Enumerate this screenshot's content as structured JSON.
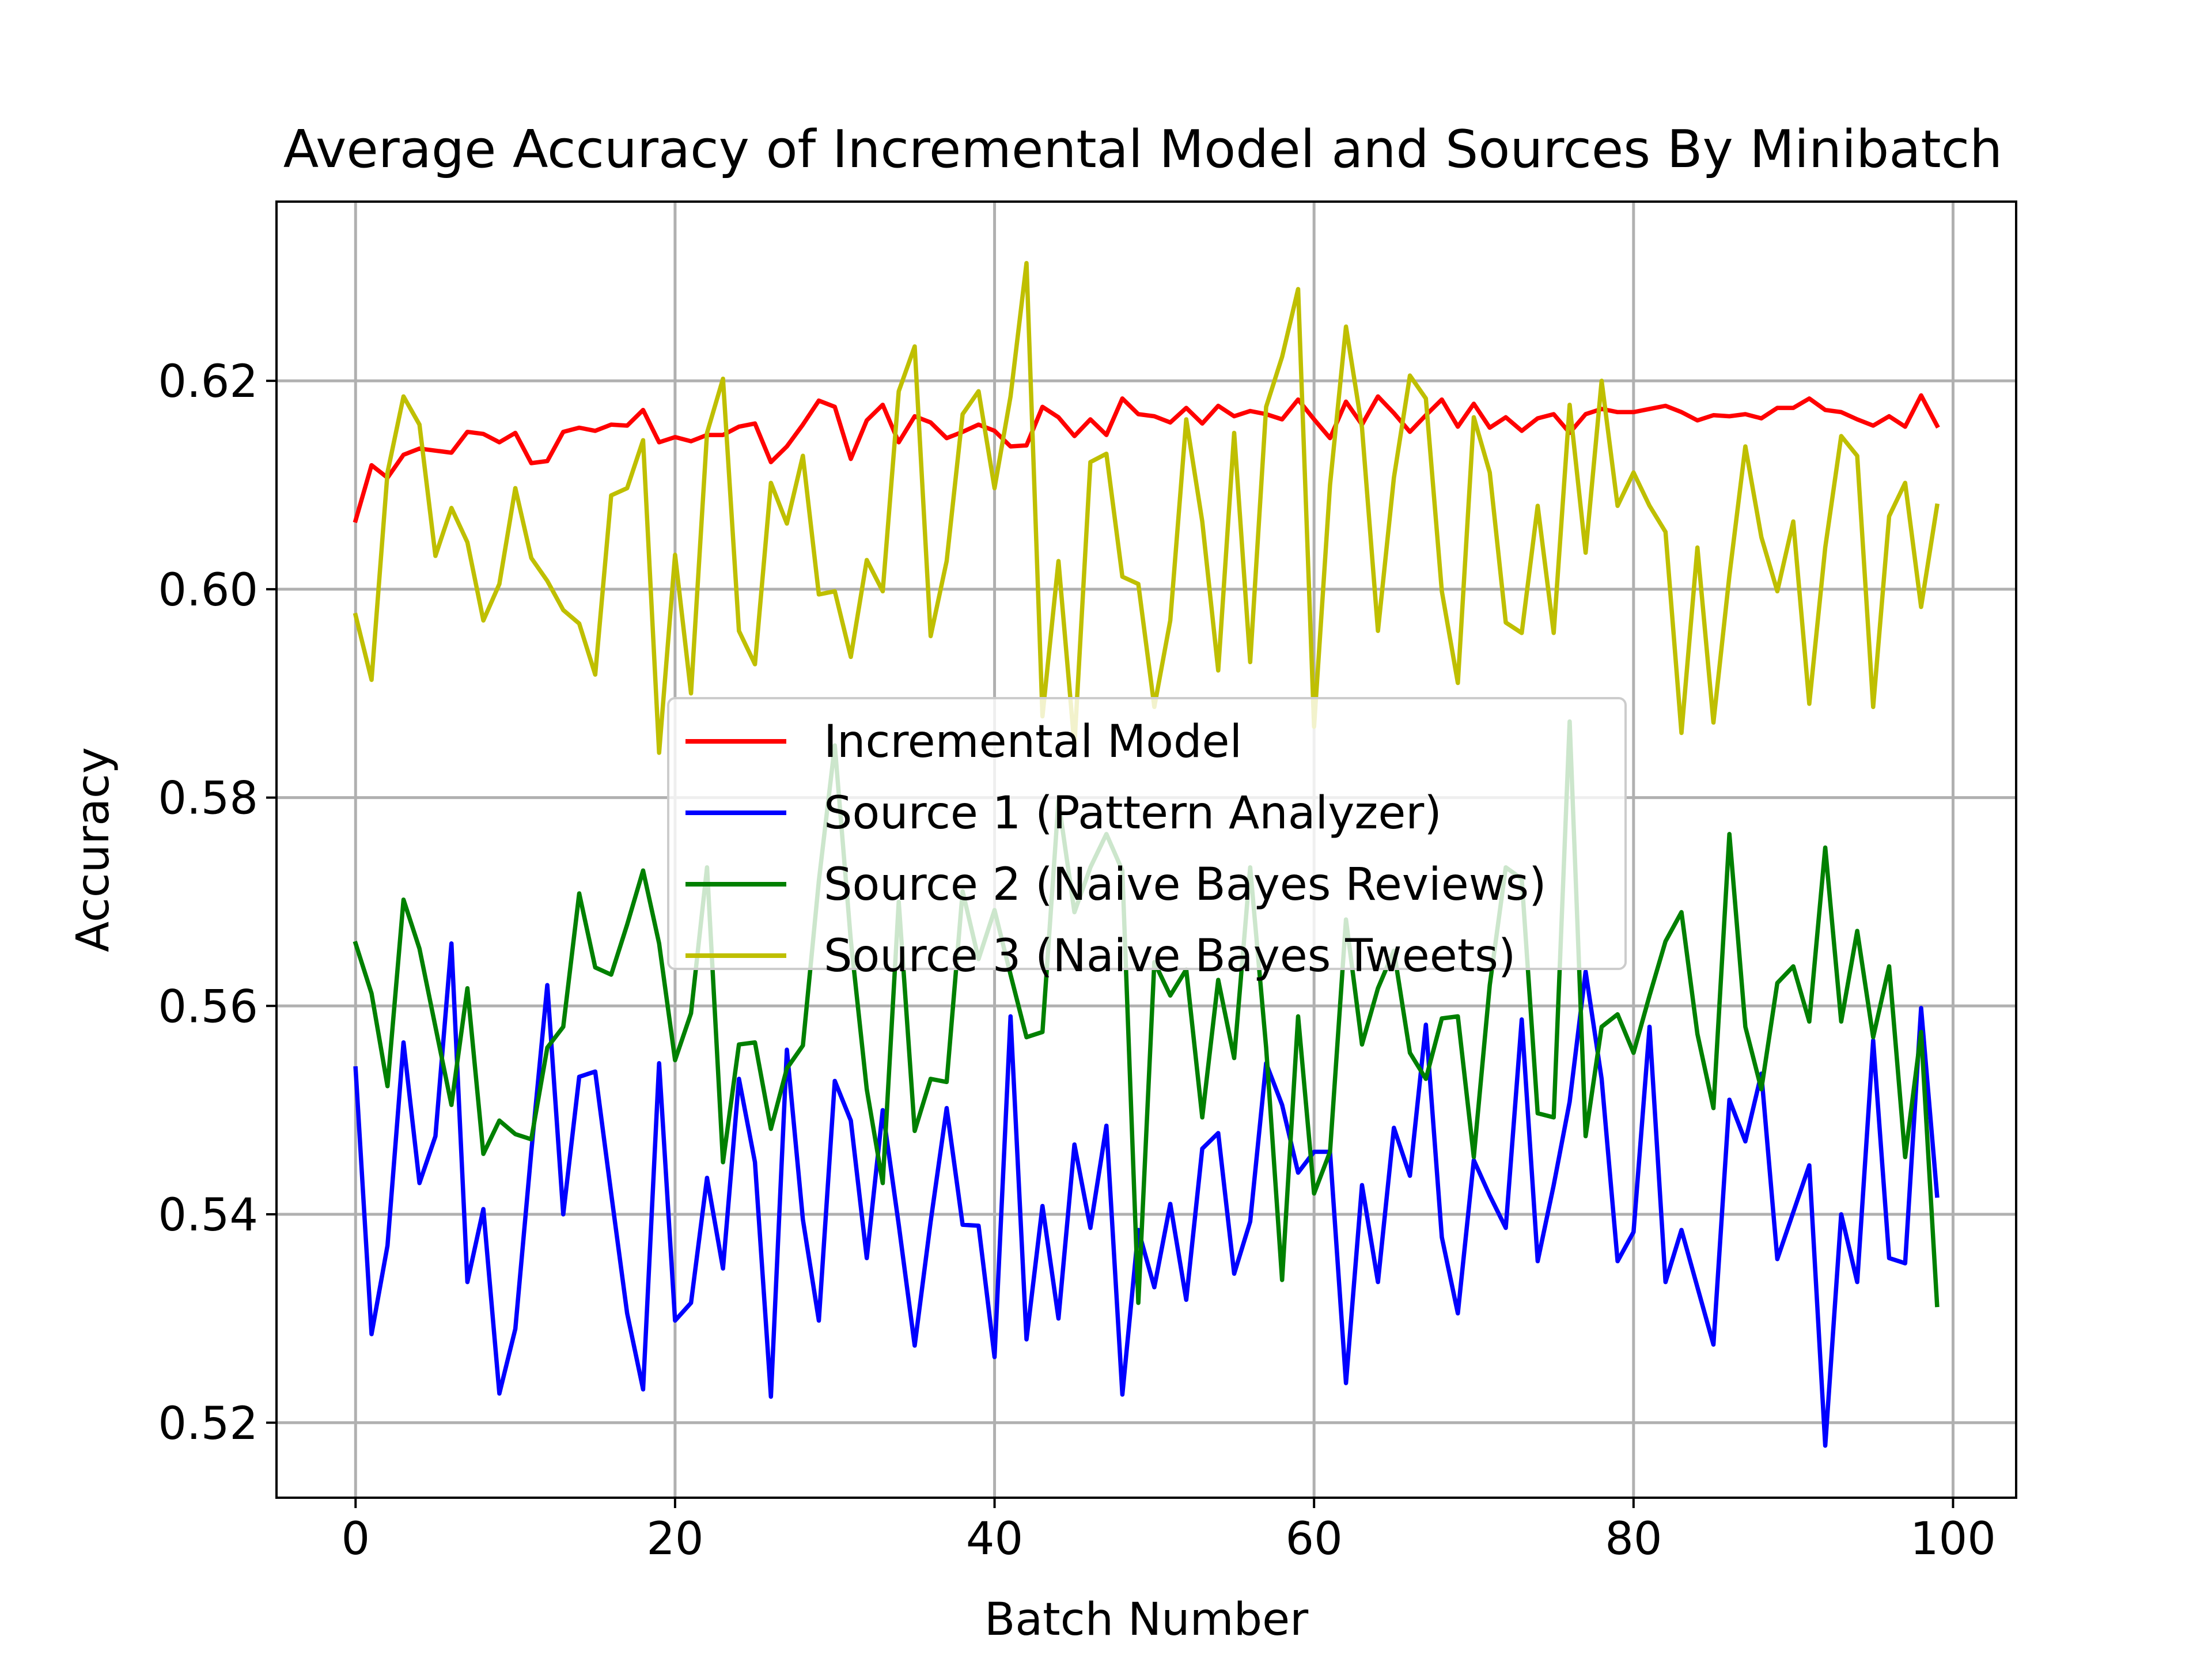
{
  "chart_data": {
    "type": "line",
    "title": "Average Accuracy of Incremental Model and Sources By Minibatch",
    "xlabel": "Batch Number",
    "ylabel": "Accuracy",
    "xlim": [
      -4.95,
      103.95
    ],
    "ylim": [
      0.5128,
      0.6372
    ],
    "xticks": [
      0,
      20,
      40,
      60,
      80,
      100
    ],
    "yticks": [
      0.52,
      0.54,
      0.56,
      0.58,
      0.6,
      0.62
    ],
    "xtick_labels": [
      "0",
      "20",
      "40",
      "60",
      "80",
      "100"
    ],
    "ytick_labels": [
      "0.52",
      "0.54",
      "0.56",
      "0.58",
      "0.60",
      "0.62"
    ],
    "grid": true,
    "legend_position": "center",
    "x": [
      0,
      1,
      2,
      3,
      4,
      5,
      6,
      7,
      8,
      9,
      10,
      11,
      12,
      13,
      14,
      15,
      16,
      17,
      18,
      19,
      20,
      21,
      22,
      23,
      24,
      25,
      26,
      27,
      28,
      29,
      30,
      31,
      32,
      33,
      34,
      35,
      36,
      37,
      38,
      39,
      40,
      41,
      42,
      43,
      44,
      45,
      46,
      47,
      48,
      49,
      50,
      51,
      52,
      53,
      54,
      55,
      56,
      57,
      58,
      59,
      60,
      61,
      62,
      63,
      64,
      65,
      66,
      67,
      68,
      69,
      70,
      71,
      72,
      73,
      74,
      75,
      76,
      77,
      78,
      79,
      80,
      81,
      82,
      83,
      84,
      85,
      86,
      87,
      88,
      89,
      90,
      91,
      92,
      93,
      94,
      95,
      96,
      97,
      98,
      99
    ],
    "series": [
      {
        "name": "Incremental Model",
        "color": "#ff0000",
        "values": [
          0.6066,
          0.6119,
          0.6107,
          0.6129,
          0.6135,
          0.6133,
          0.6131,
          0.6151,
          0.6149,
          0.6141,
          0.615,
          0.6121,
          0.6123,
          0.6151,
          0.6155,
          0.6152,
          0.6158,
          0.6157,
          0.6172,
          0.6141,
          0.6146,
          0.6142,
          0.6148,
          0.6148,
          0.6156,
          0.6159,
          0.6122,
          0.6137,
          0.6158,
          0.6181,
          0.6175,
          0.6125,
          0.6162,
          0.6177,
          0.6141,
          0.6166,
          0.616,
          0.6145,
          0.6151,
          0.6158,
          0.6152,
          0.6137,
          0.6138,
          0.6175,
          0.6165,
          0.6147,
          0.6163,
          0.6148,
          0.6183,
          0.6168,
          0.6166,
          0.616,
          0.6174,
          0.6159,
          0.6176,
          0.6166,
          0.6171,
          0.6168,
          0.6163,
          0.6182,
          0.6163,
          0.6145,
          0.618,
          0.6158,
          0.6185,
          0.6169,
          0.6151,
          0.6167,
          0.6182,
          0.6156,
          0.6178,
          0.6155,
          0.6165,
          0.6152,
          0.6164,
          0.6168,
          0.615,
          0.6168,
          0.6173,
          0.617,
          0.617,
          0.6173,
          0.6176,
          0.617,
          0.6162,
          0.6167,
          0.6166,
          0.6168,
          0.6164,
          0.6174,
          0.6174,
          0.6183,
          0.6172,
          0.617,
          0.6163,
          0.6157,
          0.6166,
          0.6156,
          0.6186,
          0.6157
        ]
      },
      {
        "name": "Source 1 (Pattern Analyzer)",
        "color": "#0000ff",
        "values": [
          0.554,
          0.5285,
          0.537,
          0.5565,
          0.543,
          0.5475,
          0.566,
          0.5335,
          0.5405,
          0.5228,
          0.529,
          0.546,
          0.562,
          0.54,
          0.5532,
          0.5537,
          0.542,
          0.5305,
          0.5232,
          0.5545,
          0.5298,
          0.5315,
          0.5435,
          0.5348,
          0.553,
          0.545,
          0.5225,
          0.5558,
          0.5395,
          0.5298,
          0.5528,
          0.549,
          0.5358,
          0.55,
          0.539,
          0.5274,
          0.5393,
          0.5502,
          0.539,
          0.5389,
          0.5263,
          0.559,
          0.528,
          0.5408,
          0.53,
          0.5467,
          0.5387,
          0.5485,
          0.5227,
          0.5385,
          0.533,
          0.541,
          0.5318,
          0.5463,
          0.5478,
          0.5343,
          0.5393,
          0.5545,
          0.5505,
          0.544,
          0.546,
          0.546,
          0.5238,
          0.5428,
          0.5335,
          0.5483,
          0.5437,
          0.5582,
          0.5378,
          0.5305,
          0.5452,
          0.5418,
          0.5387,
          0.5587,
          0.5355,
          0.5428,
          0.5508,
          0.5633,
          0.553,
          0.5355,
          0.5383,
          0.558,
          0.5335,
          0.5385,
          0.533,
          0.5275,
          0.551,
          0.547,
          0.5535,
          0.5357,
          0.5402,
          0.5447,
          0.5178,
          0.54,
          0.5335,
          0.5567,
          0.5358,
          0.5353,
          0.5598,
          0.5418
        ]
      },
      {
        "name": "Source 2 (Naive Bayes Reviews)",
        "color": "#008000",
        "values": [
          0.566,
          0.5612,
          0.5523,
          0.5702,
          0.5655,
          0.558,
          0.5505,
          0.5617,
          0.5458,
          0.549,
          0.5477,
          0.5472,
          0.556,
          0.558,
          0.5708,
          0.5637,
          0.563,
          0.5678,
          0.573,
          0.566,
          0.5548,
          0.5593,
          0.5733,
          0.545,
          0.5563,
          0.5565,
          0.5482,
          0.554,
          0.5562,
          0.572,
          0.585,
          0.5663,
          0.552,
          0.543,
          0.57,
          0.548,
          0.553,
          0.5527,
          0.571,
          0.5645,
          0.5692,
          0.563,
          0.557,
          0.5575,
          0.5797,
          0.569,
          0.5733,
          0.5765,
          0.573,
          0.5315,
          0.5642,
          0.561,
          0.5635,
          0.5493,
          0.5625,
          0.555,
          0.5733,
          0.556,
          0.5337,
          0.559,
          0.542,
          0.546,
          0.5683,
          0.5563,
          0.5617,
          0.5653,
          0.5555,
          0.553,
          0.5588,
          0.559,
          0.5455,
          0.562,
          0.5733,
          0.5722,
          0.5497,
          0.5493,
          0.5873,
          0.5475,
          0.558,
          0.5592,
          0.5555,
          0.561,
          0.5662,
          0.569,
          0.5573,
          0.5502,
          0.5765,
          0.558,
          0.552,
          0.5622,
          0.5638,
          0.5585,
          0.5752,
          0.5585,
          0.5672,
          0.557,
          0.5638,
          0.5455,
          0.5575,
          0.5313
        ]
      },
      {
        "name": "Source 3 (Naive Bayes Tweets)",
        "color": "#bfbf00",
        "values": [
          0.5975,
          0.5913,
          0.6112,
          0.6185,
          0.6158,
          0.6032,
          0.6078,
          0.6045,
          0.597,
          0.6005,
          0.6097,
          0.603,
          0.6008,
          0.598,
          0.5967,
          0.5918,
          0.609,
          0.6097,
          0.6143,
          0.5843,
          0.6033,
          0.59,
          0.615,
          0.6202,
          0.596,
          0.5928,
          0.6102,
          0.6063,
          0.6128,
          0.5995,
          0.5998,
          0.5935,
          0.6028,
          0.5998,
          0.619,
          0.6233,
          0.5955,
          0.6027,
          0.6168,
          0.619,
          0.6097,
          0.6185,
          0.6313,
          0.5878,
          0.6027,
          0.585,
          0.6122,
          0.613,
          0.6012,
          0.6005,
          0.5887,
          0.597,
          0.6163,
          0.6065,
          0.5922,
          0.615,
          0.593,
          0.6175,
          0.6223,
          0.6288,
          0.5868,
          0.61,
          0.6252,
          0.6155,
          0.596,
          0.6107,
          0.6205,
          0.6183,
          0.5998,
          0.591,
          0.6165,
          0.6112,
          0.5968,
          0.5958,
          0.608,
          0.5958,
          0.6177,
          0.6035,
          0.62,
          0.608,
          0.6112,
          0.608,
          0.6055,
          0.5862,
          0.604,
          0.5872,
          0.6013,
          0.6137,
          0.605,
          0.5998,
          0.6065,
          0.589,
          0.604,
          0.6147,
          0.6128,
          0.5887,
          0.607,
          0.6102,
          0.5983,
          0.608
        ]
      }
    ]
  }
}
